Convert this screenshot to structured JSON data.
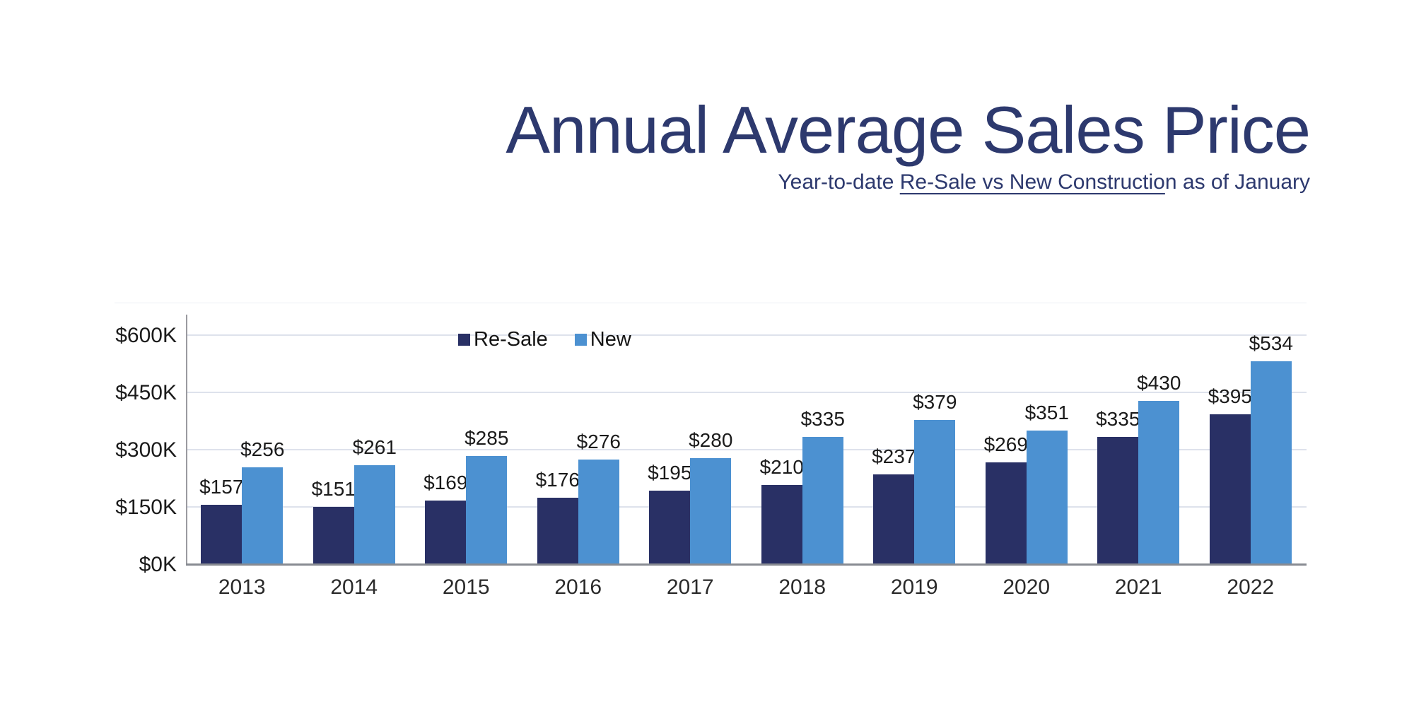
{
  "title": "Annual Average Sales Price",
  "subtitle": {
    "prefix": "Year-to-date ",
    "underlined": "Re-Sale vs New Constructio",
    "suffix": "n as of January"
  },
  "colors": {
    "title_navy": "#2d396e",
    "resale_bar": "#293065",
    "new_bar": "#4c91d1",
    "gridline": "#dee2ec",
    "baseline": "#888b92",
    "y_axis_line": "#9a9aa0",
    "frame_edge": "#eceef3",
    "label_text": "#1b1b1b"
  },
  "chart_data": {
    "type": "bar",
    "title": "Annual Average Sales Price",
    "subtitle": "Year-to-date Re-Sale vs New Construction as of January",
    "categories": [
      "2013",
      "2014",
      "2015",
      "2016",
      "2017",
      "2018",
      "2019",
      "2020",
      "2021",
      "2022"
    ],
    "series": [
      {
        "name": "Re-Sale",
        "color": "#293065",
        "values": [
          157,
          151,
          169,
          176,
          195,
          210,
          237,
          269,
          335,
          395
        ]
      },
      {
        "name": "New",
        "color": "#4c91d1",
        "values": [
          256,
          261,
          285,
          276,
          280,
          335,
          379,
          351,
          430,
          534
        ]
      }
    ],
    "value_prefix": "$",
    "data_labels": {
      "Re-Sale": [
        "$157",
        "$151",
        "$169",
        "$176",
        "$195",
        "$210",
        "$237",
        "$269",
        "$335",
        "$395"
      ],
      "New": [
        "$256",
        "$261",
        "$285",
        "$276",
        "$280",
        "$335",
        "$379",
        "$351",
        "$430",
        "$534"
      ]
    },
    "xlabel": "",
    "ylabel": "",
    "ylim": [
      0,
      600
    ],
    "yticks": [
      {
        "value": 0,
        "label": "$0K"
      },
      {
        "value": 150,
        "label": "$150K"
      },
      {
        "value": 300,
        "label": "$300K"
      },
      {
        "value": 450,
        "label": "$450K"
      },
      {
        "value": 600,
        "label": "$600K"
      }
    ],
    "grid": true,
    "legend_position": "top-inside-left-of-center",
    "legend": [
      {
        "label": "Re-Sale",
        "color": "#293065"
      },
      {
        "label": "New",
        "color": "#4c91d1"
      }
    ]
  }
}
